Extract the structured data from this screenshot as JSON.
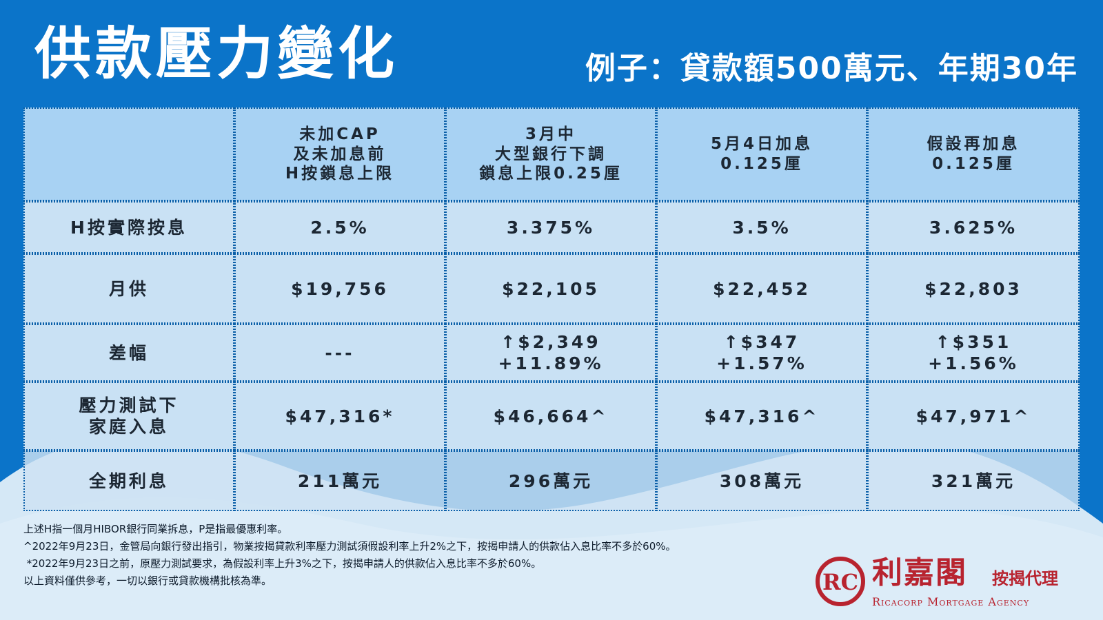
{
  "title": "供款壓力變化",
  "subtitle": "例子：貸款額500萬元、年期30年",
  "table": {
    "headers": [
      "",
      "未加CAP\n及未加息前\nH按鎖息上限",
      "3月中\n大型銀行下調\n鎖息上限0.25厘",
      "5月4日加息\n0.125厘",
      "假設再加息\n0.125厘"
    ],
    "rows": [
      {
        "label": "H按實際按息",
        "cells": [
          "2.5%",
          "3.375%",
          "3.5%",
          "3.625%"
        ]
      },
      {
        "label": "月供",
        "cells": [
          "$19,756",
          "$22,105",
          "$22,452",
          "$22,803"
        ]
      },
      {
        "label": "差幅",
        "cells": [
          "---",
          "↑$2,349\n+11.89%",
          "↑$347\n+1.57%",
          "↑$351\n+1.56%"
        ]
      },
      {
        "label": "壓力測試下\n家庭入息",
        "cells": [
          "$47,316*",
          "$46,664^",
          "$47,316^",
          "$47,971^"
        ]
      },
      {
        "label": "全期利息",
        "cells": [
          "211萬元",
          "296萬元",
          "308萬元",
          "321萬元"
        ]
      }
    ]
  },
  "notes": [
    "上述H指一個月HIBOR銀行同業拆息，P是指最優惠利率。",
    "^2022年9月23日，金管局向銀行發出指引，物業按揭貸款利率壓力測試須假設利率上升2%之下，按揭申請人的供款佔入息比率不多於60%。",
    " *2022年9月23日之前，原壓力測試要求，為假設利率上升3%之下，按揭申請人的供款佔入息比率不多於60%。",
    "以上資料僅供參考，一切以銀行或貸款機構批核為準。"
  ],
  "logo": {
    "mark_text": "RC",
    "name_cn": "利嘉閣",
    "tagline": "按揭代理",
    "name_en": "Ricacorp Mortgage Agency",
    "color": "#b8232f"
  },
  "colors": {
    "background": "#0b74c9",
    "header_cell": "#a8d2f3",
    "body_cell": "#c9e1f4",
    "wave": "#d5e8f6"
  }
}
